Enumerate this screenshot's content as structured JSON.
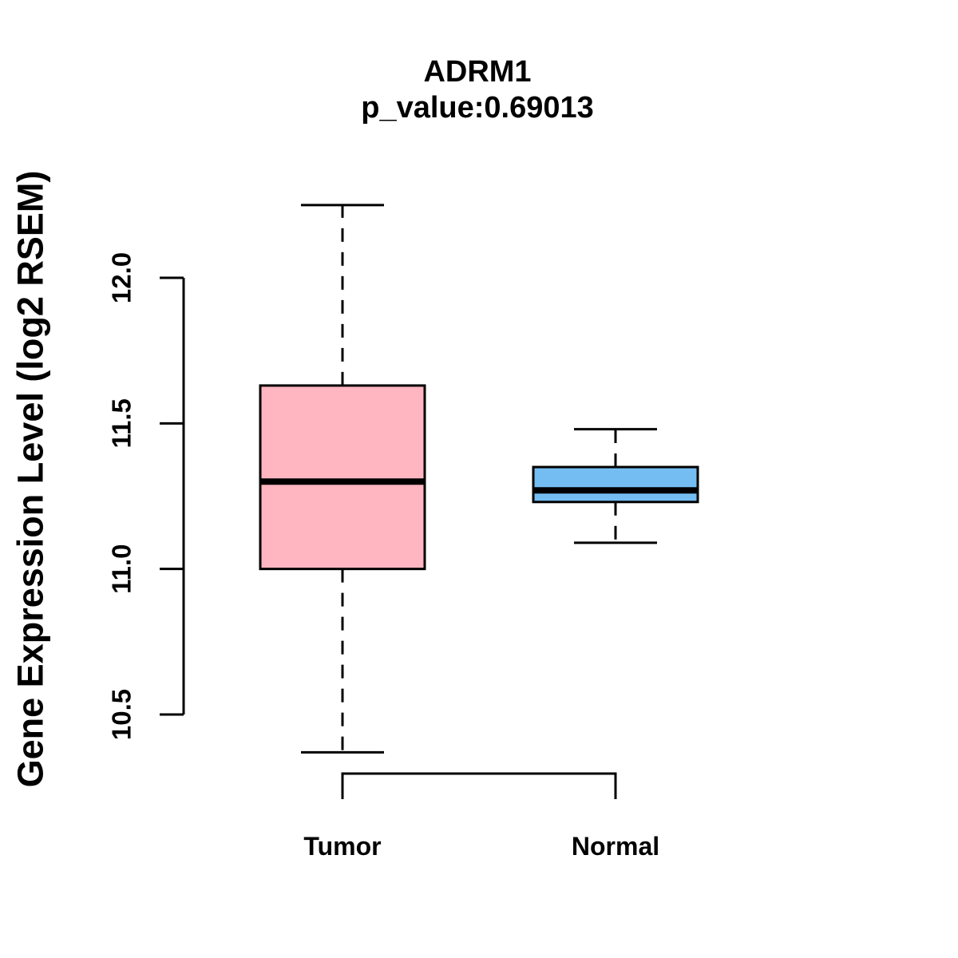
{
  "chart_data": {
    "type": "boxplot",
    "title": "ADRM1",
    "subtitle": "p_value:0.69013",
    "ylabel": "Gene Expression Level (log2 RSEM)",
    "xlabel": "",
    "y_axis": {
      "min": 10.5,
      "max": 12.0,
      "ticks": [
        10.5,
        11.0,
        11.5,
        12.0
      ],
      "tick_labels": [
        "10.5",
        "11.0",
        "11.5",
        "12.0"
      ]
    },
    "groups": [
      {
        "label": "Tumor",
        "fill_color": "#FFB6C1",
        "lower_whisker": 10.37,
        "q1": 11.0,
        "median": 11.3,
        "q3": 11.63,
        "upper_whisker": 12.25
      },
      {
        "label": "Normal",
        "fill_color": "#74BDF2",
        "lower_whisker": 11.09,
        "q1": 11.23,
        "median": 11.27,
        "q3": 11.35,
        "upper_whisker": 11.48
      }
    ],
    "outliers_shown": false,
    "grid": false,
    "legend": false,
    "stroke_color": "#000000",
    "background_color": "#FFFFFF"
  }
}
